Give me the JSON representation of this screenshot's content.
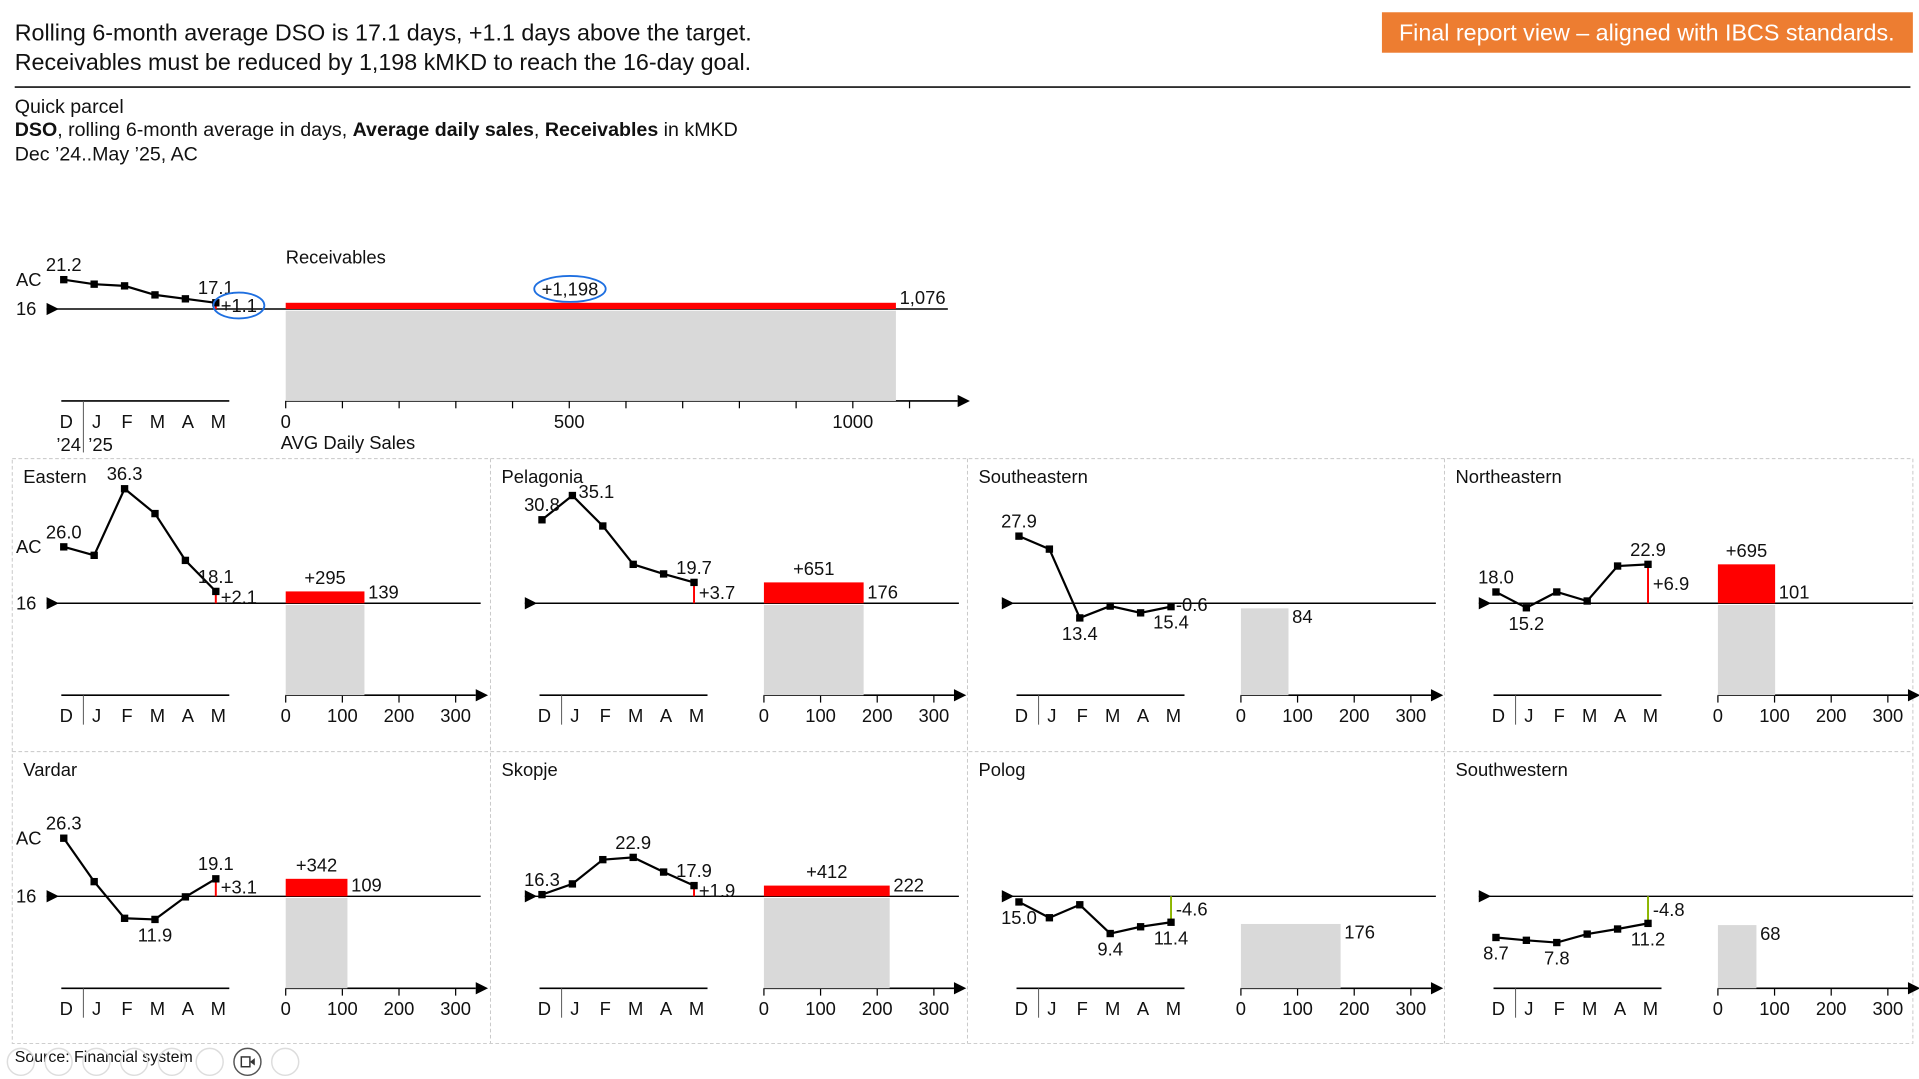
{
  "headline": {
    "line1": "Rolling 6-month average DSO is 17.1 days, +1.1 days above the target.",
    "line2": "Receivables must be reduced by 1,198 kMKD to reach the 16-day goal."
  },
  "badge": {
    "text": "Final report view – aligned with IBCS standards.",
    "color": "#ED7D31"
  },
  "subtitle": {
    "line1": "Quick parcel",
    "line2": [
      {
        "text": "DSO",
        "bold": true
      },
      {
        "text": ", rolling 6-month average in days, ",
        "bold": false
      },
      {
        "text": "Average daily sales",
        "bold": true
      },
      {
        "text": ", ",
        "bold": false
      },
      {
        "text": "Receivables",
        "bold": true
      },
      {
        "text": " in kMKD",
        "bold": false
      }
    ],
    "line3": "Dec ’24..May ’25, AC"
  },
  "colors": {
    "negative_variance": "#FF0000",
    "positive_variance": "#8DB600",
    "bar_grey": "#D9D9D9",
    "line": "#000000",
    "highlight_ellipse": "#1E6FE0",
    "panel_border": "#C8C8C8"
  },
  "chart_data": {
    "type": "line+bar",
    "months": [
      "D",
      "J",
      "F",
      "M",
      "A",
      "M"
    ],
    "years": [
      "’24",
      "’25"
    ],
    "target": 16,
    "overview": {
      "receivables_label": "Receivables",
      "x_axis_label": "AVG Daily Sales",
      "ac_label": "AC",
      "target_label": "16",
      "dso": [
        21.2,
        20.4,
        20.1,
        18.5,
        17.8,
        17.1
      ],
      "point_labels": [
        {
          "i": 0,
          "text": "21.2",
          "pos": "above"
        },
        {
          "i": 5,
          "text": "17.1",
          "pos": "above"
        }
      ],
      "delta_days": "+1.1",
      "delta_receivables": "+1,198",
      "avg_daily_sales": 1076,
      "avg_daily_sales_label": "1,076",
      "x_ticks": [
        0,
        100,
        200,
        300,
        400,
        500,
        600,
        700,
        800,
        900,
        1000,
        1100
      ],
      "x_tick_labels": [
        "0",
        "500",
        "1000"
      ],
      "highlighted": [
        "delta_days",
        "delta_receivables"
      ]
    },
    "panel_x_ticks": [
      "0",
      "100",
      "200",
      "300"
    ],
    "panels": [
      {
        "name": "Eastern",
        "ac_label": "AC",
        "target_label": "16",
        "dso": [
          26.0,
          24.5,
          36.3,
          31.9,
          23.6,
          18.1
        ],
        "point_labels": [
          {
            "i": 0,
            "text": "26.0",
            "pos": "above"
          },
          {
            "i": 2,
            "text": "36.3",
            "pos": "above"
          },
          {
            "i": 5,
            "text": "18.1",
            "pos": "above"
          }
        ],
        "delta_days": "+2.1",
        "delta_receivables": "+295",
        "avg_daily_sales": 139,
        "avg_daily_sales_label": "139"
      },
      {
        "name": "Pelagonia",
        "dso": [
          30.8,
          35.1,
          29.7,
          22.9,
          21.2,
          19.7
        ],
        "point_labels": [
          {
            "i": 0,
            "text": "30.8",
            "pos": "above"
          },
          {
            "i": 1,
            "text": "35.1",
            "pos": "right"
          },
          {
            "i": 5,
            "text": "19.7",
            "pos": "above"
          }
        ],
        "delta_days": "+3.7",
        "delta_receivables": "+651",
        "avg_daily_sales": 176,
        "avg_daily_sales_label": "176"
      },
      {
        "name": "Southeastern",
        "dso": [
          27.9,
          25.6,
          13.4,
          15.5,
          14.3,
          15.4
        ],
        "point_labels": [
          {
            "i": 0,
            "text": "27.9",
            "pos": "above"
          },
          {
            "i": 2,
            "text": "13.4",
            "pos": "below"
          },
          {
            "i": 5,
            "text": "15.4",
            "pos": "below"
          }
        ],
        "delta_days": "-0.6",
        "delta_receivables": "",
        "avg_daily_sales": 84,
        "avg_daily_sales_label": "84"
      },
      {
        "name": "Northeastern",
        "dso": [
          18.0,
          15.2,
          18.0,
          16.4,
          22.6,
          22.9
        ],
        "point_labels": [
          {
            "i": 0,
            "text": "18.0",
            "pos": "above"
          },
          {
            "i": 1,
            "text": "15.2",
            "pos": "below"
          },
          {
            "i": 5,
            "text": "22.9",
            "pos": "above"
          }
        ],
        "delta_days": "+6.9",
        "delta_receivables": "+695",
        "avg_daily_sales": 101,
        "avg_daily_sales_label": "101"
      },
      {
        "name": "Vardar",
        "ac_label": "AC",
        "target_label": "16",
        "dso": [
          26.3,
          18.6,
          12.1,
          11.9,
          15.9,
          19.1
        ],
        "point_labels": [
          {
            "i": 0,
            "text": "26.3",
            "pos": "above"
          },
          {
            "i": 3,
            "text": "11.9",
            "pos": "below"
          },
          {
            "i": 5,
            "text": "19.1",
            "pos": "above"
          }
        ],
        "delta_days": "+3.1",
        "delta_receivables": "+342",
        "avg_daily_sales": 109,
        "avg_daily_sales_label": "109"
      },
      {
        "name": "Skopje",
        "dso": [
          16.3,
          18.2,
          22.5,
          22.9,
          20.3,
          17.9
        ],
        "point_labels": [
          {
            "i": 0,
            "text": "16.3",
            "pos": "above"
          },
          {
            "i": 3,
            "text": "22.9",
            "pos": "above"
          },
          {
            "i": 5,
            "text": "17.9",
            "pos": "above"
          }
        ],
        "delta_days": "+1.9",
        "delta_receivables": "+412",
        "avg_daily_sales": 222,
        "avg_daily_sales_label": "222"
      },
      {
        "name": "Polog",
        "dso": [
          15.0,
          12.2,
          14.5,
          9.4,
          10.6,
          11.4
        ],
        "point_labels": [
          {
            "i": 0,
            "text": "15.0",
            "pos": "below"
          },
          {
            "i": 3,
            "text": "9.4",
            "pos": "below"
          },
          {
            "i": 5,
            "text": "11.4",
            "pos": "below"
          }
        ],
        "delta_days": "-4.6",
        "delta_receivables": "",
        "avg_daily_sales": 176,
        "avg_daily_sales_label": "176"
      },
      {
        "name": "Southwestern",
        "dso": [
          8.7,
          8.2,
          7.8,
          9.3,
          10.2,
          11.2
        ],
        "point_labels": [
          {
            "i": 0,
            "text": "8.7",
            "pos": "below"
          },
          {
            "i": 2,
            "text": "7.8",
            "pos": "below"
          },
          {
            "i": 5,
            "text": "11.2",
            "pos": "below"
          }
        ],
        "delta_days": "-4.8",
        "delta_receivables": "",
        "avg_daily_sales": 68,
        "avg_daily_sales_label": "68"
      }
    ]
  },
  "footer": {
    "source": "Source: Financial system",
    "controls": [
      "previous-icon",
      "next-icon",
      "pen-icon",
      "slides-icon",
      "zoom-icon",
      "subtitles-icon",
      "camera-icon",
      "more-icon"
    ],
    "active_control": "camera-icon"
  }
}
